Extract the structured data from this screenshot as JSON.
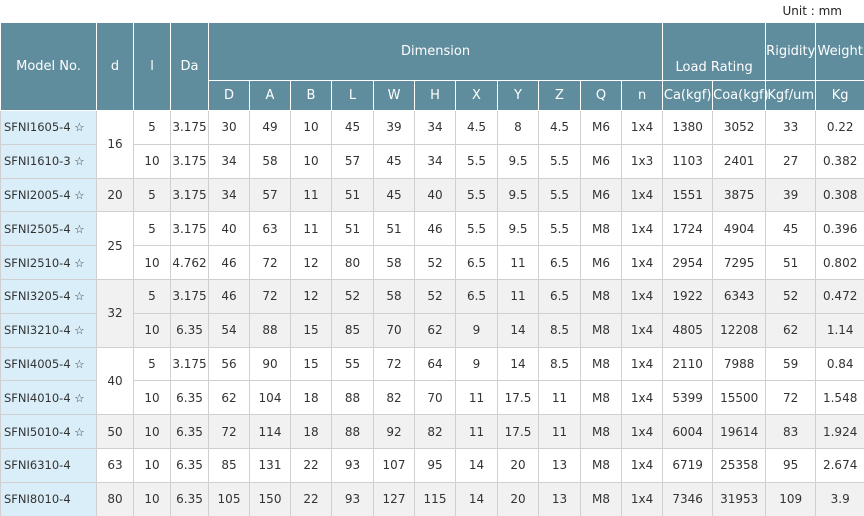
{
  "unit": "Unit : mm",
  "header": {
    "model": "Model No.",
    "d": "d",
    "l": "l",
    "da": "Da",
    "dimension": "Dimension",
    "load_rating": "Load Rating",
    "rigidity": "Rigidity",
    "weight": "Weight",
    "sub": [
      "D",
      "A",
      "B",
      "L",
      "W",
      "H",
      "X",
      "Y",
      "Z",
      "Q",
      "n",
      "Ca(kgf)",
      "Coa(kgf)",
      "Kgf/um",
      "Kg"
    ]
  },
  "groups": [
    {
      "d": "16",
      "rows": [
        [
          "SFNI1605-4 ☆",
          "5",
          "3.175",
          "30",
          "49",
          "10",
          "45",
          "39",
          "34",
          "4.5",
          "8",
          "4.5",
          "M6",
          "1x4",
          "1380",
          "3052",
          "33",
          "0.22"
        ],
        [
          "SFNI1610-3 ☆",
          "10",
          "3.175",
          "34",
          "58",
          "10",
          "57",
          "45",
          "34",
          "5.5",
          "9.5",
          "5.5",
          "M6",
          "1x3",
          "1103",
          "2401",
          "27",
          "0.382"
        ]
      ]
    },
    {
      "d": "20",
      "rows": [
        [
          "SFNI2005-4 ☆",
          "5",
          "3.175",
          "34",
          "57",
          "11",
          "51",
          "45",
          "40",
          "5.5",
          "9.5",
          "5.5",
          "M6",
          "1x4",
          "1551",
          "3875",
          "39",
          "0.308"
        ]
      ]
    },
    {
      "d": "25",
      "rows": [
        [
          "SFNI2505-4 ☆",
          "5",
          "3.175",
          "40",
          "63",
          "11",
          "51",
          "51",
          "46",
          "5.5",
          "9.5",
          "5.5",
          "M8",
          "1x4",
          "1724",
          "4904",
          "45",
          "0.396"
        ],
        [
          "SFNI2510-4 ☆",
          "10",
          "4.762",
          "46",
          "72",
          "12",
          "80",
          "58",
          "52",
          "6.5",
          "11",
          "6.5",
          "M6",
          "1x4",
          "2954",
          "7295",
          "51",
          "0.802"
        ]
      ]
    },
    {
      "d": "32",
      "rows": [
        [
          "SFNI3205-4 ☆",
          "5",
          "3.175",
          "46",
          "72",
          "12",
          "52",
          "58",
          "52",
          "6.5",
          "11",
          "6.5",
          "M8",
          "1x4",
          "1922",
          "6343",
          "52",
          "0.472"
        ],
        [
          "SFNI3210-4 ☆",
          "10",
          "6.35",
          "54",
          "88",
          "15",
          "85",
          "70",
          "62",
          "9",
          "14",
          "8.5",
          "M8",
          "1x4",
          "4805",
          "12208",
          "62",
          "1.14"
        ]
      ]
    },
    {
      "d": "40",
      "rows": [
        [
          "SFNI4005-4 ☆",
          "5",
          "3.175",
          "56",
          "90",
          "15",
          "55",
          "72",
          "64",
          "9",
          "14",
          "8.5",
          "M8",
          "1x4",
          "2110",
          "7988",
          "59",
          "0.84"
        ],
        [
          "SFNI4010-4 ☆",
          "10",
          "6.35",
          "62",
          "104",
          "18",
          "88",
          "82",
          "70",
          "11",
          "17.5",
          "11",
          "M8",
          "1x4",
          "5399",
          "15500",
          "72",
          "1.548"
        ]
      ]
    },
    {
      "d": "50",
      "rows": [
        [
          "SFNI5010-4 ☆",
          "10",
          "6.35",
          "72",
          "114",
          "18",
          "88",
          "92",
          "82",
          "11",
          "17.5",
          "11",
          "M8",
          "1x4",
          "6004",
          "19614",
          "83",
          "1.924"
        ]
      ]
    },
    {
      "d": "63",
      "rows": [
        [
          "SFNI6310-4",
          "10",
          "6.35",
          "85",
          "131",
          "22",
          "93",
          "107",
          "95",
          "14",
          "20",
          "13",
          "M8",
          "1x4",
          "6719",
          "25358",
          "95",
          "2.674"
        ]
      ]
    },
    {
      "d": "80",
      "rows": [
        [
          "SFNI8010-4",
          "10",
          "6.35",
          "105",
          "150",
          "22",
          "93",
          "127",
          "115",
          "14",
          "20",
          "13",
          "M8",
          "1x4",
          "7346",
          "31953",
          "109",
          "3.9"
        ]
      ]
    }
  ]
}
